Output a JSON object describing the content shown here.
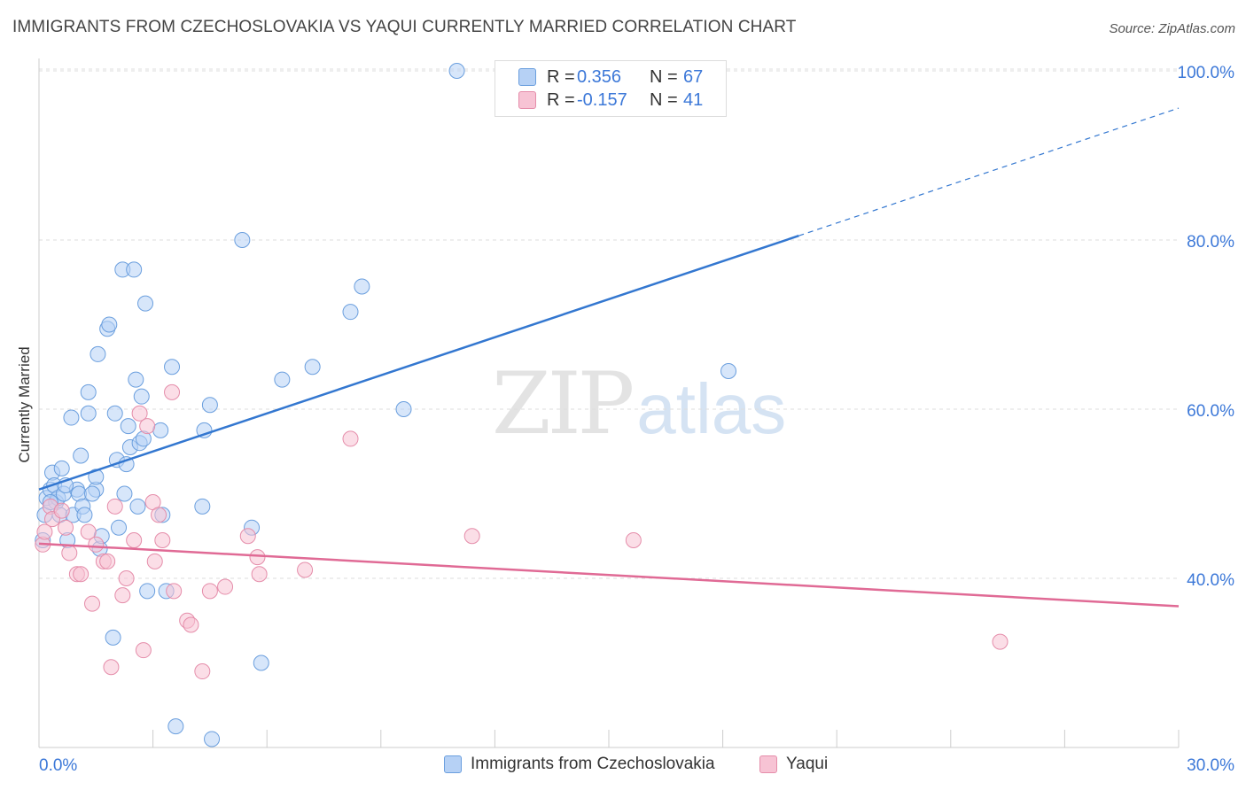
{
  "header": {
    "title": "IMMIGRANTS FROM CZECHOSLOVAKIA VS YAQUI CURRENTLY MARRIED CORRELATION CHART",
    "source": "Source: ZipAtlas.com"
  },
  "watermark": {
    "zip": "ZIP",
    "atlas": "atlas"
  },
  "legend": {
    "rows": [
      {
        "r_label": "R =",
        "r_value": "0.356",
        "n_label": "N =",
        "n_value": "67"
      },
      {
        "r_label": "R =",
        "r_value": "-0.157",
        "n_label": "N =",
        "n_value": "41"
      }
    ]
  },
  "bottom_legend": {
    "items": [
      {
        "label": "Immigrants from Czechoslovakia"
      },
      {
        "label": "Yaqui"
      }
    ]
  },
  "colors": {
    "blue_fill": "#b6d1f5",
    "blue_stroke": "#6b9fde",
    "blue_line": "#3377d0",
    "pink_fill": "#f7c3d4",
    "pink_stroke": "#e58daa",
    "pink_line": "#e06a95",
    "value_text": "#3c78d8",
    "grid": "#dddddd"
  },
  "chart_data": {
    "type": "scatter",
    "title": "IMMIGRANTS FROM CZECHOSLOVAKIA VS YAQUI CURRENTLY MARRIED CORRELATION CHART",
    "xlabel": "",
    "ylabel": "Currently Married",
    "xlim": [
      0,
      30
    ],
    "ylim": [
      20,
      102
    ],
    "x_tick_labels": [
      "0.0%",
      "30.0%"
    ],
    "y_ticks": [
      40,
      60,
      80,
      100
    ],
    "y_tick_labels": [
      "40.0%",
      "60.0%",
      "80.0%",
      "100.0%"
    ],
    "grid": true,
    "legend_position": "top-center",
    "series": [
      {
        "name": "Immigrants from Czechoslovakia",
        "r": 0.356,
        "n": 67,
        "trend": {
          "x0": 0,
          "y0": 50.5,
          "x1": 20,
          "y1": 80.5,
          "dashed_to_x": 30,
          "dashed_to_y": 95.6
        },
        "points": [
          [
            0.1,
            44.5
          ],
          [
            0.15,
            47.5
          ],
          [
            0.2,
            49.5
          ],
          [
            0.3,
            50.5
          ],
          [
            0.35,
            52.5
          ],
          [
            0.4,
            51
          ],
          [
            0.45,
            49
          ],
          [
            0.5,
            49.5
          ],
          [
            0.55,
            47.5
          ],
          [
            0.6,
            53
          ],
          [
            0.65,
            50
          ],
          [
            0.75,
            44.5
          ],
          [
            0.85,
            59
          ],
          [
            0.9,
            47.5
          ],
          [
            1.0,
            50.5
          ],
          [
            1.05,
            50
          ],
          [
            1.1,
            54.5
          ],
          [
            1.15,
            48.5
          ],
          [
            1.2,
            47.5
          ],
          [
            1.3,
            59.5
          ],
          [
            1.3,
            62
          ],
          [
            1.5,
            50.5
          ],
          [
            1.5,
            52
          ],
          [
            1.55,
            66.5
          ],
          [
            1.6,
            43.5
          ],
          [
            1.65,
            45
          ],
          [
            1.8,
            69.5
          ],
          [
            1.85,
            70
          ],
          [
            1.95,
            33
          ],
          [
            2.0,
            59.5
          ],
          [
            2.05,
            54
          ],
          [
            2.2,
            76.5
          ],
          [
            2.25,
            50
          ],
          [
            2.3,
            53.5
          ],
          [
            2.35,
            58
          ],
          [
            2.4,
            55.5
          ],
          [
            2.5,
            76.5
          ],
          [
            2.55,
            63.5
          ],
          [
            2.6,
            48.5
          ],
          [
            2.65,
            56
          ],
          [
            2.7,
            61.5
          ],
          [
            2.75,
            56.5
          ],
          [
            2.8,
            72.5
          ],
          [
            2.85,
            38.5
          ],
          [
            3.2,
            57.5
          ],
          [
            3.25,
            47.5
          ],
          [
            3.35,
            38.5
          ],
          [
            3.5,
            65
          ],
          [
            3.6,
            22.5
          ],
          [
            4.3,
            48.5
          ],
          [
            4.35,
            57.5
          ],
          [
            4.5,
            60.5
          ],
          [
            4.55,
            21
          ],
          [
            5.35,
            80
          ],
          [
            5.6,
            46
          ],
          [
            5.85,
            30
          ],
          [
            6.4,
            63.5
          ],
          [
            7.2,
            65
          ],
          [
            8.2,
            71.5
          ],
          [
            8.5,
            74.5
          ],
          [
            9.6,
            60
          ],
          [
            11.0,
            100
          ],
          [
            18.15,
            64.5
          ],
          [
            0.3,
            49
          ],
          [
            0.7,
            51
          ],
          [
            1.4,
            50
          ],
          [
            2.1,
            46
          ]
        ]
      },
      {
        "name": "Yaqui",
        "r": -0.157,
        "n": 41,
        "trend": {
          "x0": 0,
          "y0": 44.1,
          "x1": 30,
          "y1": 36.7
        },
        "points": [
          [
            0.1,
            44
          ],
          [
            0.15,
            45.5
          ],
          [
            0.3,
            48.5
          ],
          [
            0.35,
            47
          ],
          [
            0.6,
            48
          ],
          [
            0.7,
            46
          ],
          [
            0.8,
            43
          ],
          [
            1.0,
            40.5
          ],
          [
            1.1,
            40.5
          ],
          [
            1.3,
            45.5
          ],
          [
            1.4,
            37
          ],
          [
            1.5,
            44
          ],
          [
            1.7,
            42
          ],
          [
            1.8,
            42
          ],
          [
            1.9,
            29.5
          ],
          [
            2.0,
            48.5
          ],
          [
            2.2,
            38
          ],
          [
            2.3,
            40
          ],
          [
            2.5,
            44.5
          ],
          [
            2.65,
            59.5
          ],
          [
            2.75,
            31.5
          ],
          [
            2.85,
            58
          ],
          [
            3.0,
            49
          ],
          [
            3.05,
            42
          ],
          [
            3.15,
            47.5
          ],
          [
            3.25,
            44.5
          ],
          [
            3.5,
            62
          ],
          [
            3.55,
            38.5
          ],
          [
            3.9,
            35
          ],
          [
            4.0,
            34.5
          ],
          [
            4.3,
            29
          ],
          [
            4.5,
            38.5
          ],
          [
            4.9,
            39
          ],
          [
            5.5,
            45
          ],
          [
            5.75,
            42.5
          ],
          [
            5.8,
            40.5
          ],
          [
            7.0,
            41
          ],
          [
            8.2,
            56.5
          ],
          [
            11.4,
            45
          ],
          [
            15.65,
            44.5
          ],
          [
            25.3,
            32.5
          ]
        ]
      }
    ]
  }
}
